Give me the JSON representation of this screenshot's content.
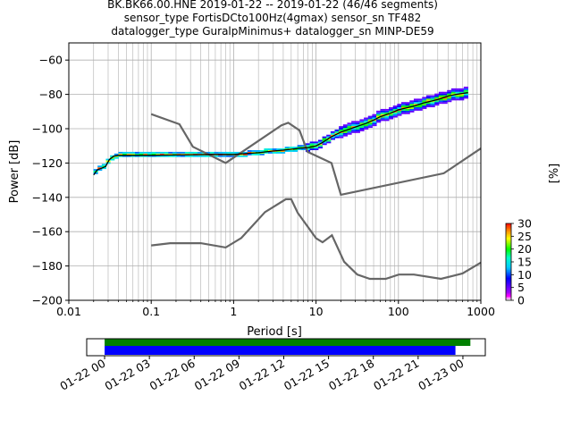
{
  "header": {
    "line1": "BK.BK66.00.HNE   2019-01-22 -- 2019-01-22  (46/46 segments)",
    "line2": "sensor_type FortisDCto100Hz(4gmax) sensor_sn TF482",
    "line3": "datalogger_type GuralpMinimus+ datalogger_sn MINP-DE59"
  },
  "chart_data": [
    {
      "type": "line",
      "subtype": "probabilistic-power-spectral-density",
      "xlabel": "Period [s]",
      "ylabel": "Power [dB]",
      "xscale": "log",
      "xlim": [
        0.01,
        1000
      ],
      "ylim": [
        -200,
        -50
      ],
      "xticks": [
        0.01,
        0.1,
        1,
        10,
        100,
        1000
      ],
      "xtick_labels": [
        "0.01",
        "0.1",
        "1",
        "10",
        "100",
        "1000"
      ],
      "yticks": [
        -200,
        -180,
        -160,
        -140,
        -120,
        -100,
        -80,
        -60
      ],
      "ytick_labels": [
        "−200",
        "−180",
        "−160",
        "−140",
        "−120",
        "−100",
        "−80",
        "−60"
      ],
      "grid": true,
      "series": [
        {
          "role": "mode-curve",
          "color": "#000000",
          "x": [
            0.02,
            0.022,
            0.025,
            0.028,
            0.031,
            0.035,
            0.04,
            0.05,
            0.1,
            0.2,
            0.5,
            1,
            2,
            3,
            4,
            5,
            6,
            8,
            10,
            12,
            15,
            20,
            30,
            40,
            50,
            60,
            80,
            100,
            150,
            200,
            300,
            400,
            500,
            700
          ],
          "y": [
            -127,
            -124,
            -123,
            -122,
            -118,
            -116,
            -115.5,
            -115.5,
            -115.5,
            -115.3,
            -115,
            -115,
            -114,
            -113,
            -112.5,
            -112,
            -111.5,
            -111,
            -110,
            -108,
            -105,
            -102,
            -99,
            -97,
            -95,
            -93,
            -91,
            -89,
            -87,
            -85,
            -83,
            -81,
            -80,
            -79
          ]
        },
        {
          "role": "new-high-noise-model",
          "color": "#666666",
          "x": [
            0.1,
            0.22,
            0.32,
            0.8,
            3.8,
            4.6,
            6.3,
            7.9,
            15.4,
            20,
            354.8,
            1000
          ],
          "y": [
            -91.5,
            -97.4,
            -110.5,
            -120,
            -98,
            -96.5,
            -101,
            -113.5,
            -120,
            -138.5,
            -126,
            -111.5
          ]
        },
        {
          "role": "new-low-noise-model",
          "color": "#666666",
          "x": [
            0.1,
            0.17,
            0.4,
            0.8,
            1.24,
            2.4,
            4.3,
            5,
            6,
            10,
            12,
            15.6,
            21.9,
            31.6,
            45,
            70,
            101,
            154,
            328,
            600,
            1000
          ],
          "y": [
            -168,
            -166.7,
            -166.7,
            -169.2,
            -163.7,
            -148.6,
            -141.1,
            -141.1,
            -149,
            -163.8,
            -166.2,
            -162.1,
            -177.5,
            -185,
            -187.5,
            -187.5,
            -185,
            -185,
            -187.5,
            -184.4,
            -178
          ]
        }
      ],
      "colorbar": {
        "label": "[%]",
        "range": [
          0,
          30
        ],
        "ticks": [
          0,
          5,
          10,
          15,
          20,
          25,
          30
        ]
      }
    },
    {
      "type": "timeline",
      "description": "data coverage",
      "xtick_labels": [
        "01-22 00",
        "01-22 03",
        "01-22 06",
        "01-22 09",
        "01-22 12",
        "01-22 15",
        "01-22 18",
        "01-22 21",
        "01-23 00"
      ],
      "x_range_hours": [
        -1.2,
        25.5
      ],
      "bars": [
        {
          "role": "psd-segments",
          "color": "#008000",
          "start_hour": 0,
          "end_hour": 24.5
        },
        {
          "role": "data-available",
          "color": "#0000ff",
          "start_hour": 0,
          "end_hour": 23.5
        }
      ]
    }
  ]
}
